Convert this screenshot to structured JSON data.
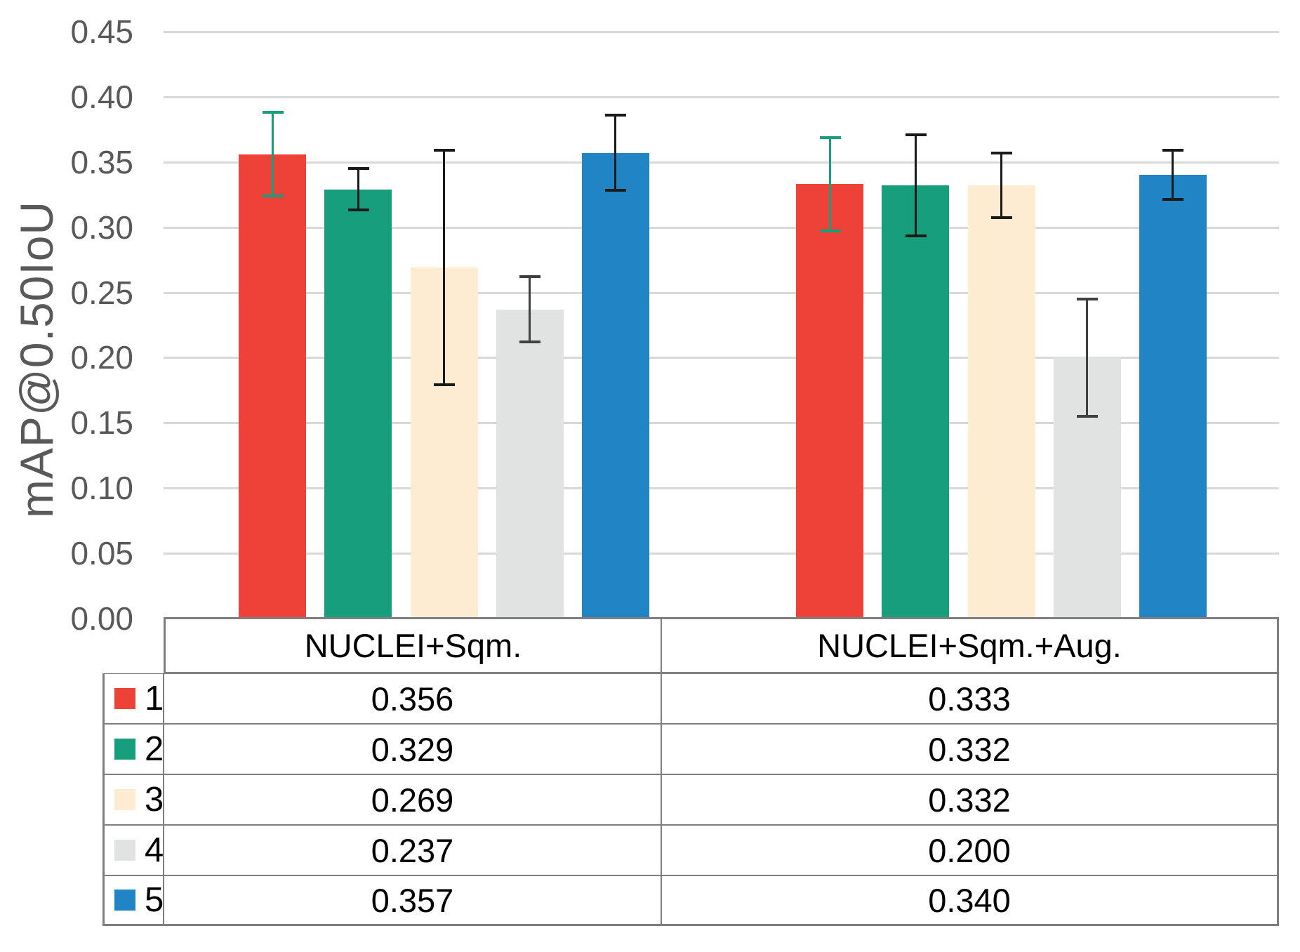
{
  "chart_data": {
    "type": "bar",
    "title": "",
    "ylabel": "mAP@0.50IoU",
    "ylim": [
      0.0,
      0.45
    ],
    "ytick_step": 0.05,
    "yticks": [
      "0.00",
      "0.05",
      "0.10",
      "0.15",
      "0.20",
      "0.25",
      "0.30",
      "0.35",
      "0.40",
      "0.45"
    ],
    "grid": "horizontal",
    "legend_position": "table-left-column",
    "categories": [
      "NUCLEI+Sqm.",
      "NUCLEI+Sqm.+Aug."
    ],
    "series": [
      {
        "name": "1",
        "color": "#ee4137",
        "errbar_color": "#179e7d",
        "values": [
          0.356,
          0.333
        ],
        "errors": [
          0.033,
          0.037
        ]
      },
      {
        "name": "2",
        "color": "#179e7d",
        "errbar_color": "#1a1a1a",
        "values": [
          0.329,
          0.332
        ],
        "errors": [
          0.017,
          0.04
        ]
      },
      {
        "name": "3",
        "color": "#fdecd2",
        "errbar_color": "#1a1a1a",
        "values": [
          0.269,
          0.332
        ],
        "errors": [
          0.091,
          0.026
        ]
      },
      {
        "name": "4",
        "color": "#e1e2e2",
        "errbar_color": "#404040",
        "values": [
          0.237,
          0.2
        ],
        "errors": [
          0.026,
          0.046
        ]
      },
      {
        "name": "5",
        "color": "#2184c5",
        "errbar_color": "#1a1a1a",
        "values": [
          0.357,
          0.34
        ],
        "errors": [
          0.03,
          0.02
        ]
      }
    ]
  },
  "axis": {
    "y_label": "mAP@0.50IoU"
  },
  "table": {
    "column_headers": [
      "NUCLEI+Sqm.",
      "NUCLEI+Sqm.+Aug."
    ],
    "rows": [
      {
        "label": "1",
        "values": [
          "0.356",
          "0.333"
        ]
      },
      {
        "label": "2",
        "values": [
          "0.329",
          "0.332"
        ]
      },
      {
        "label": "3",
        "values": [
          "0.269",
          "0.332"
        ]
      },
      {
        "label": "4",
        "values": [
          "0.237",
          "0.200"
        ]
      },
      {
        "label": "5",
        "values": [
          "0.357",
          "0.340"
        ]
      }
    ]
  }
}
